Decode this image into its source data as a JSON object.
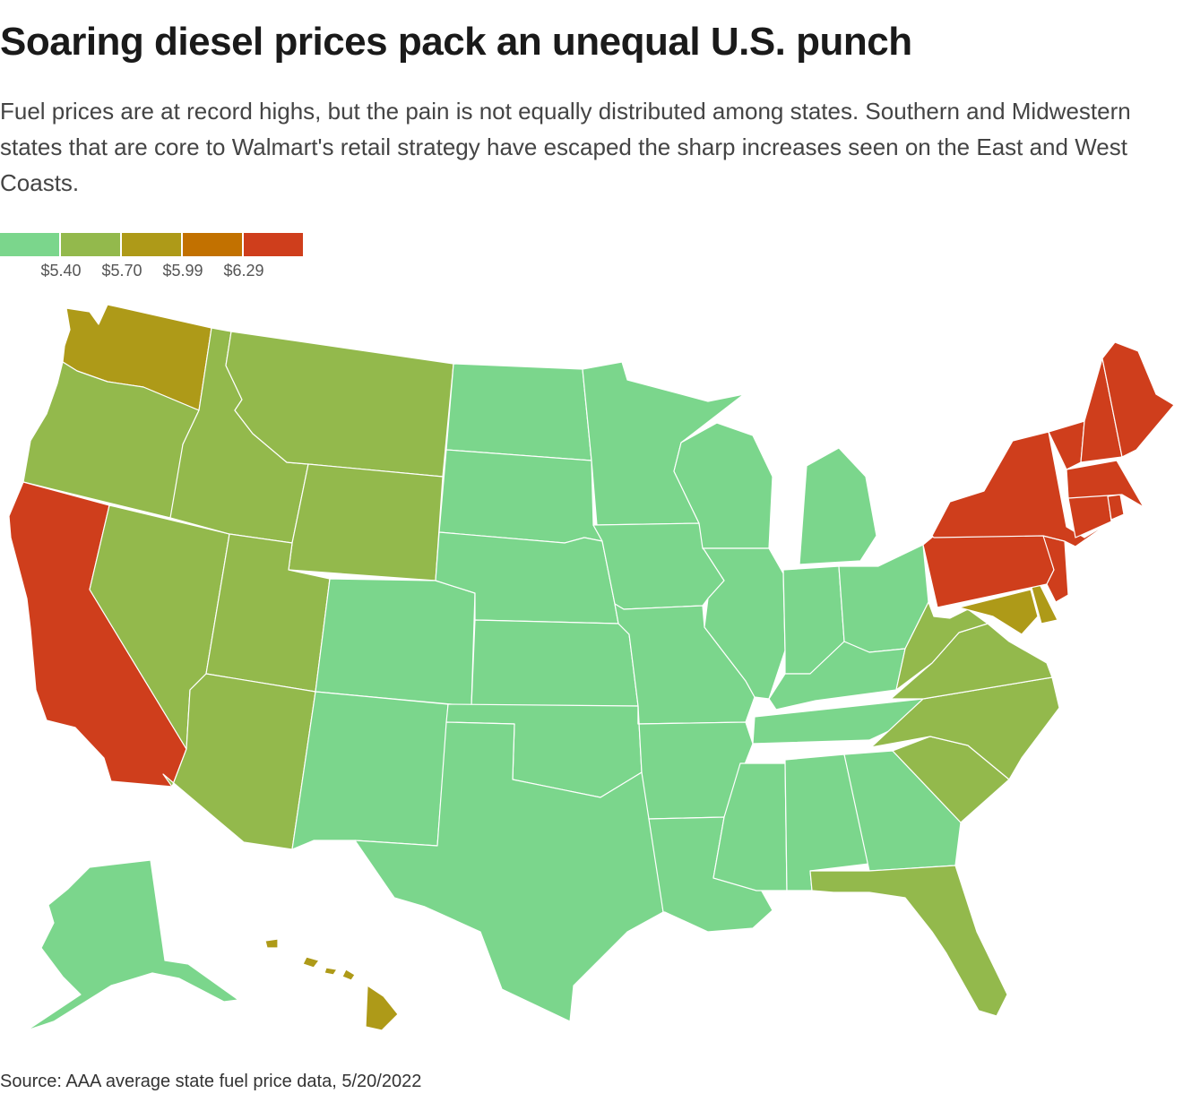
{
  "title": "Soaring diesel prices pack an unequal U.S. punch",
  "subtitle": "Fuel prices are at record highs, but the pain is not equally distributed among states. Southern and Midwestern states that are core to Walmart's retail strategy have escaped the sharp increases seen on the East and West Coasts.",
  "legend": {
    "colors": [
      "#7bd68c",
      "#93b94c",
      "#ae9a18",
      "#c27100",
      "#cf3e1c"
    ],
    "labels": [
      "$5.40",
      "$5.70",
      "$5.99",
      "$6.29"
    ]
  },
  "source": "Source: AAA average state fuel price data, 5/20/2022",
  "chart_data": {
    "type": "choropleth",
    "bins": [
      {
        "max": 5.4,
        "color": "#7bd68c"
      },
      {
        "min": 5.4,
        "max": 5.7,
        "color": "#93b94c"
      },
      {
        "min": 5.7,
        "max": 5.99,
        "color": "#ae9a18"
      },
      {
        "min": 5.99,
        "max": 6.29,
        "color": "#c27100"
      },
      {
        "min": 6.29,
        "color": "#cf3e1c"
      }
    ],
    "states": [
      {
        "id": "WA",
        "bin": 2
      },
      {
        "id": "OR",
        "bin": 1
      },
      {
        "id": "CA",
        "bin": 4
      },
      {
        "id": "NV",
        "bin": 1
      },
      {
        "id": "ID",
        "bin": 1
      },
      {
        "id": "MT",
        "bin": 1
      },
      {
        "id": "WY",
        "bin": 1
      },
      {
        "id": "UT",
        "bin": 1
      },
      {
        "id": "AZ",
        "bin": 1
      },
      {
        "id": "CO",
        "bin": 0
      },
      {
        "id": "NM",
        "bin": 0
      },
      {
        "id": "ND",
        "bin": 0
      },
      {
        "id": "SD",
        "bin": 0
      },
      {
        "id": "NE",
        "bin": 0
      },
      {
        "id": "KS",
        "bin": 0
      },
      {
        "id": "OK",
        "bin": 0
      },
      {
        "id": "TX",
        "bin": 0
      },
      {
        "id": "MN",
        "bin": 0
      },
      {
        "id": "IA",
        "bin": 0
      },
      {
        "id": "MO",
        "bin": 0
      },
      {
        "id": "AR",
        "bin": 0
      },
      {
        "id": "LA",
        "bin": 0
      },
      {
        "id": "WI",
        "bin": 0
      },
      {
        "id": "IL",
        "bin": 0
      },
      {
        "id": "MI",
        "bin": 0
      },
      {
        "id": "IN",
        "bin": 0
      },
      {
        "id": "OH",
        "bin": 0
      },
      {
        "id": "KY",
        "bin": 0
      },
      {
        "id": "TN",
        "bin": 0
      },
      {
        "id": "MS",
        "bin": 0
      },
      {
        "id": "AL",
        "bin": 0
      },
      {
        "id": "GA",
        "bin": 0
      },
      {
        "id": "FL",
        "bin": 1
      },
      {
        "id": "SC",
        "bin": 1
      },
      {
        "id": "NC",
        "bin": 1
      },
      {
        "id": "VA",
        "bin": 1
      },
      {
        "id": "WV",
        "bin": 1
      },
      {
        "id": "MD",
        "bin": 2
      },
      {
        "id": "DE",
        "bin": 2
      },
      {
        "id": "PA",
        "bin": 4
      },
      {
        "id": "NJ",
        "bin": 4
      },
      {
        "id": "NY",
        "bin": 4
      },
      {
        "id": "CT",
        "bin": 4
      },
      {
        "id": "RI",
        "bin": 4
      },
      {
        "id": "MA",
        "bin": 4
      },
      {
        "id": "VT",
        "bin": 4
      },
      {
        "id": "NH",
        "bin": 4
      },
      {
        "id": "ME",
        "bin": 4
      },
      {
        "id": "AK",
        "bin": 0
      },
      {
        "id": "HI",
        "bin": 2
      }
    ]
  }
}
